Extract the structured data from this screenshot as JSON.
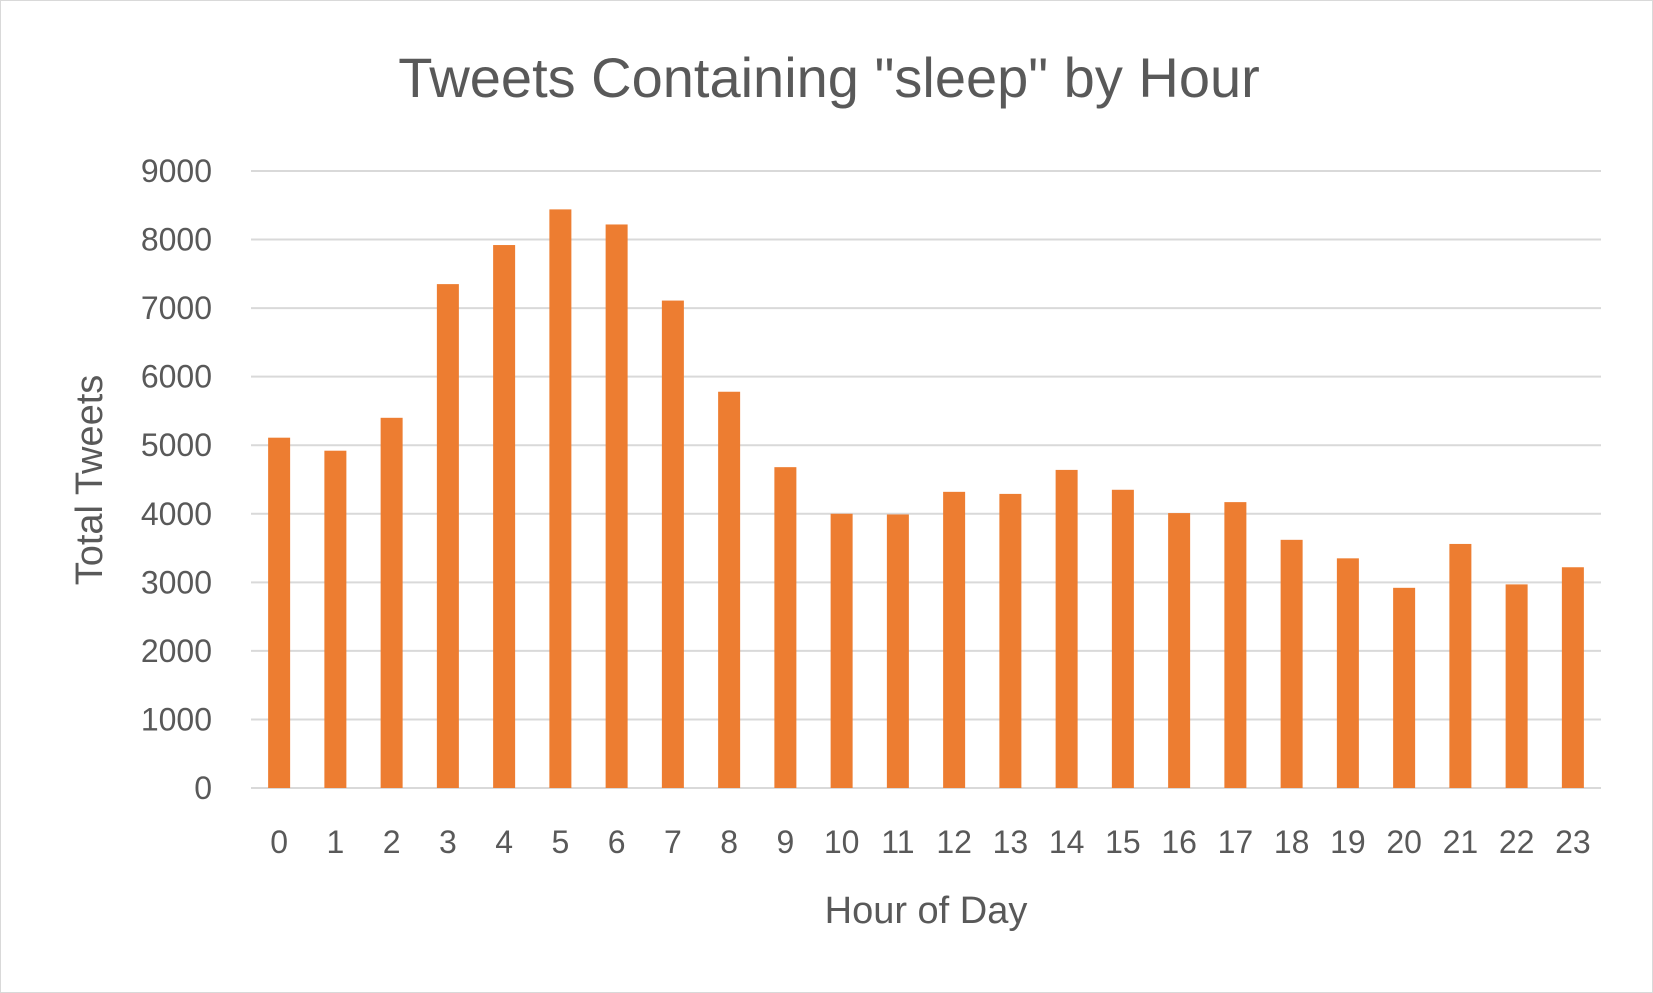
{
  "chart_data": {
    "type": "bar",
    "title": "Tweets Containing \"sleep\" by Hour",
    "xlabel": "Hour of Day",
    "ylabel": "Total Tweets",
    "categories": [
      "0",
      "1",
      "2",
      "3",
      "4",
      "5",
      "6",
      "7",
      "8",
      "9",
      "10",
      "11",
      "12",
      "13",
      "14",
      "15",
      "16",
      "17",
      "18",
      "19",
      "20",
      "21",
      "22",
      "23"
    ],
    "values": [
      5110,
      4920,
      5400,
      7350,
      7920,
      8440,
      8220,
      7110,
      5780,
      4680,
      4000,
      3990,
      4320,
      4290,
      4640,
      4350,
      4010,
      4170,
      3620,
      3350,
      2920,
      3560,
      2970,
      3220
    ],
    "ylim": [
      0,
      9000
    ],
    "yticks": [
      0,
      1000,
      2000,
      3000,
      4000,
      5000,
      6000,
      7000,
      8000,
      9000
    ],
    "grid": true,
    "legend": "none",
    "bar_color": "#ED7D31",
    "grid_color": "#D9D9D9",
    "text_color": "#595959"
  }
}
